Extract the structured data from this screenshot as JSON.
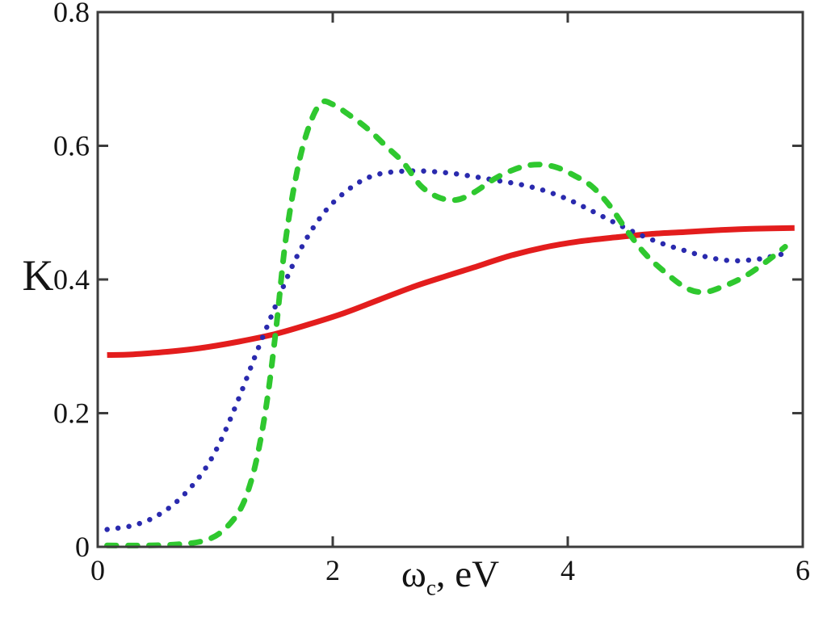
{
  "figure": {
    "background": "#ffffff",
    "ylabel": "K",
    "xlabel_omega": "ω",
    "xlabel_sub": "c",
    "xlabel_rest": ", eV"
  },
  "chart_data": {
    "type": "line",
    "title": "",
    "xlabel": "ω_c, eV",
    "ylabel": "K",
    "xlim": [
      0,
      6
    ],
    "ylim": [
      0,
      0.8
    ],
    "xticks": [
      0,
      2,
      4,
      6
    ],
    "yticks": [
      0,
      0.2,
      0.4,
      0.6,
      0.8
    ],
    "grid": false,
    "legend_position": "none",
    "box": true,
    "mirrored_ticks": true,
    "axis_color": "#3c3c3c",
    "tick_label_color": "#141414",
    "series": [
      {
        "name": "red-solid",
        "style": "solid",
        "color": "#e31d1d",
        "width": 7,
        "x": [
          0.08,
          0.3,
          0.6,
          0.9,
          1.2,
          1.5,
          1.8,
          2.1,
          2.4,
          2.7,
          3.0,
          3.2,
          3.5,
          3.8,
          4.1,
          4.4,
          4.7,
          5.0,
          5.3,
          5.6,
          5.93
        ],
        "y": [
          0.287,
          0.288,
          0.292,
          0.298,
          0.307,
          0.318,
          0.333,
          0.35,
          0.37,
          0.39,
          0.407,
          0.418,
          0.435,
          0.448,
          0.457,
          0.463,
          0.468,
          0.471,
          0.474,
          0.476,
          0.477
        ]
      },
      {
        "name": "blue-dotted",
        "style": "dotted",
        "color": "#2a2aae",
        "width": 6.4,
        "x": [
          0.08,
          0.3,
          0.5,
          0.7,
          0.9,
          1.05,
          1.2,
          1.35,
          1.5,
          1.65,
          1.8,
          1.95,
          2.1,
          2.25,
          2.4,
          2.6,
          2.8,
          3.0,
          3.2,
          3.4,
          3.6,
          3.8,
          4.0,
          4.2,
          4.4,
          4.6,
          4.8,
          5.0,
          5.2,
          5.4,
          5.6,
          5.75,
          5.9
        ],
        "y": [
          0.026,
          0.032,
          0.046,
          0.072,
          0.113,
          0.16,
          0.222,
          0.29,
          0.355,
          0.418,
          0.468,
          0.505,
          0.53,
          0.548,
          0.558,
          0.562,
          0.562,
          0.559,
          0.554,
          0.548,
          0.542,
          0.533,
          0.52,
          0.503,
          0.485,
          0.468,
          0.454,
          0.443,
          0.433,
          0.428,
          0.43,
          0.435,
          0.441
        ]
      },
      {
        "name": "green-dashed",
        "style": "dashed",
        "color": "#2fc82f",
        "width": 7,
        "x": [
          0.08,
          0.4,
          0.7,
          0.9,
          1.05,
          1.2,
          1.3,
          1.38,
          1.45,
          1.52,
          1.6,
          1.7,
          1.8,
          1.9,
          2.0,
          2.15,
          2.3,
          2.45,
          2.6,
          2.75,
          2.9,
          3.05,
          3.2,
          3.4,
          3.6,
          3.75,
          3.9,
          4.05,
          4.2,
          4.35,
          4.5,
          4.65,
          4.8,
          5.0,
          5.15,
          5.3,
          5.5,
          5.7,
          5.85
        ],
        "y": [
          0.002,
          0.002,
          0.004,
          0.009,
          0.022,
          0.052,
          0.095,
          0.155,
          0.23,
          0.33,
          0.46,
          0.565,
          0.63,
          0.664,
          0.662,
          0.645,
          0.625,
          0.6,
          0.575,
          0.54,
          0.523,
          0.519,
          0.53,
          0.553,
          0.568,
          0.572,
          0.568,
          0.556,
          0.54,
          0.512,
          0.474,
          0.44,
          0.415,
          0.388,
          0.381,
          0.388,
          0.404,
          0.428,
          0.449
        ]
      }
    ]
  }
}
